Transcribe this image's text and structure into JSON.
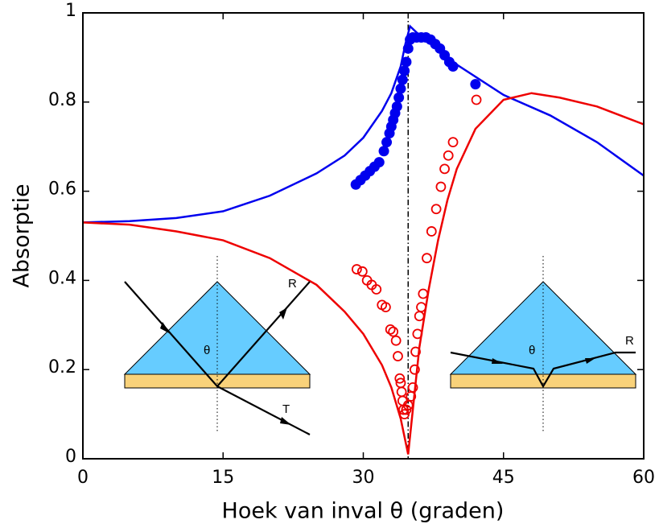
{
  "chart_data": {
    "type": "scatter",
    "x_label": "Hoek van inval θ (graden)",
    "y_label": "Absorptie",
    "xlim": [
      0,
      60
    ],
    "xticks": [
      0,
      15,
      30,
      45,
      60
    ],
    "ylim": [
      0,
      1
    ],
    "yticks": [
      0,
      0.2,
      0.4,
      0.6,
      0.8,
      1
    ],
    "vline_x": 34.8,
    "annotations": [
      "R",
      "T",
      "θ",
      "θ",
      "R"
    ],
    "series": [
      {
        "mode": "line",
        "color": "#0000ee",
        "x": [
          0,
          5,
          10,
          15,
          20,
          25,
          28,
          30,
          32,
          33,
          34,
          34.5,
          35,
          36,
          38,
          40,
          45,
          50,
          55,
          60
        ],
        "values": [
          0.53,
          0.533,
          0.54,
          0.555,
          0.59,
          0.64,
          0.68,
          0.72,
          0.78,
          0.82,
          0.88,
          0.93,
          0.97,
          0.95,
          0.92,
          0.884,
          0.816,
          0.77,
          0.71,
          0.635
        ]
      },
      {
        "mode": "filled",
        "color": "#0000ee",
        "x": [
          29.2,
          29.7,
          30.2,
          30.7,
          31.2,
          31.7,
          32.2,
          32.5,
          32.8,
          33,
          33.2,
          33.4,
          33.6,
          33.8,
          34,
          34.2,
          34.4,
          34.6,
          34.8,
          35,
          35.3,
          35.7,
          36.2,
          36.7,
          37.2,
          37.7,
          38.2,
          38.7,
          39.2,
          39.6,
          42
        ],
        "values": [
          0.615,
          0.625,
          0.635,
          0.645,
          0.655,
          0.665,
          0.69,
          0.71,
          0.73,
          0.745,
          0.76,
          0.775,
          0.79,
          0.81,
          0.83,
          0.85,
          0.87,
          0.89,
          0.92,
          0.94,
          0.945,
          0.945,
          0.945,
          0.945,
          0.94,
          0.93,
          0.92,
          0.905,
          0.89,
          0.88,
          0.84
        ]
      },
      {
        "mode": "line",
        "color": "#ee0000",
        "x": [
          0,
          5,
          10,
          15,
          20,
          25,
          28,
          30,
          32,
          33,
          34,
          34.5,
          34.8,
          35,
          35.5,
          36,
          37,
          38,
          39,
          40,
          42,
          45,
          48,
          51,
          55,
          60
        ],
        "values": [
          0.53,
          0.525,
          0.51,
          0.49,
          0.45,
          0.39,
          0.33,
          0.28,
          0.21,
          0.16,
          0.09,
          0.04,
          0.01,
          0.05,
          0.15,
          0.25,
          0.38,
          0.49,
          0.58,
          0.65,
          0.74,
          0.805,
          0.82,
          0.81,
          0.79,
          0.75
        ]
      },
      {
        "mode": "open",
        "color": "#ee0000",
        "x": [
          29.3,
          29.9,
          30.4,
          30.9,
          31.4,
          32,
          32.4,
          32.9,
          33.2,
          33.5,
          33.7,
          33.9,
          34,
          34.1,
          34.2,
          34.3,
          34.4,
          34.6,
          34.8,
          35.1,
          35.3,
          35.5,
          35.6,
          35.8,
          36,
          36.2,
          36.4,
          36.8,
          37.3,
          37.8,
          38.3,
          38.7,
          39.1,
          39.6,
          42.1
        ],
        "values": [
          0.425,
          0.42,
          0.4,
          0.39,
          0.38,
          0.345,
          0.34,
          0.29,
          0.285,
          0.265,
          0.23,
          0.18,
          0.17,
          0.15,
          0.13,
          0.11,
          0.1,
          0.11,
          0.12,
          0.14,
          0.16,
          0.2,
          0.24,
          0.28,
          0.32,
          0.34,
          0.37,
          0.45,
          0.51,
          0.56,
          0.61,
          0.65,
          0.68,
          0.71,
          0.805
        ]
      }
    ]
  }
}
